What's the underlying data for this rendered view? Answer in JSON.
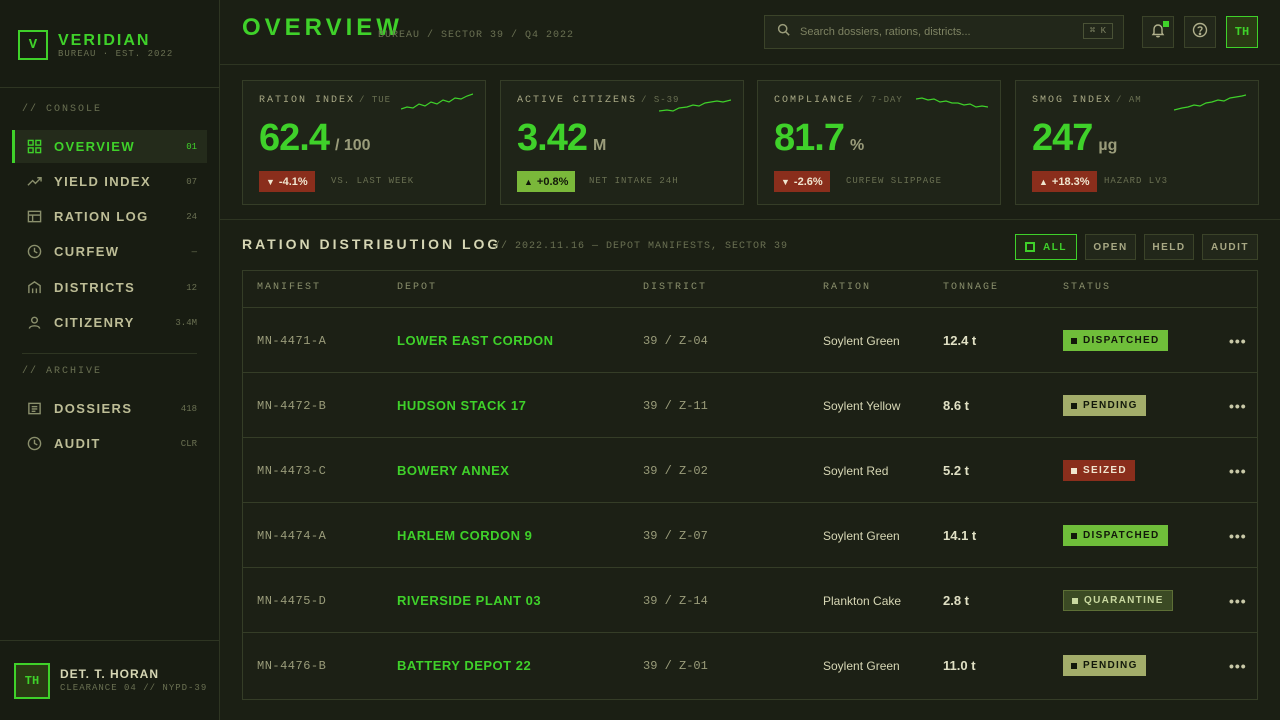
{
  "brand": {
    "mark": "V",
    "name": "VERIDIAN",
    "sub": "BUREAU · EST. 2022"
  },
  "sidebar": {
    "section_console": "// CONSOLE",
    "section_archive": "// ARCHIVE",
    "items": [
      {
        "label": "OVERVIEW",
        "count": "01",
        "icon": "grid-icon"
      },
      {
        "label": "YIELD INDEX",
        "count": "07",
        "icon": "trend-icon"
      },
      {
        "label": "RATION LOG",
        "count": "24",
        "icon": "table-icon"
      },
      {
        "label": "CURFEW",
        "count": "—",
        "icon": "clock-icon"
      },
      {
        "label": "DISTRICTS",
        "count": "12",
        "icon": "building-icon"
      },
      {
        "label": "CITIZENRY",
        "count": "3.4M",
        "icon": "person-icon"
      }
    ],
    "archive_items": [
      {
        "label": "DOSSIERS",
        "count": "418",
        "icon": "document-icon"
      },
      {
        "label": "AUDIT",
        "count": "CLR",
        "icon": "clock-icon"
      }
    ],
    "user": {
      "initials": "TH",
      "name": "DET. T. HORAN",
      "meta": "CLEARANCE 04 // NYPD-39"
    }
  },
  "header": {
    "title": "OVERVIEW",
    "breadcrumb": "BUREAU / SECTOR 39 / Q4 2022",
    "search_placeholder": "Search dossiers, rations, districts...",
    "search_shortcut": "⌘ K",
    "avatar_initials": "TH"
  },
  "cards": [
    {
      "label": "RATION INDEX",
      "period": "/ TUE",
      "value": "62.4",
      "unit": "/ 100",
      "delta": "-4.1%",
      "direction": "down",
      "note": "VS. LAST WEEK"
    },
    {
      "label": "ACTIVE CITIZENS",
      "period": "/ S-39",
      "value": "3.42",
      "unit": "M",
      "delta": "+0.8%",
      "direction": "up",
      "note": "NET INTAKE 24H"
    },
    {
      "label": "COMPLIANCE",
      "period": "/ 7-DAY",
      "value": "81.7",
      "unit": "%",
      "delta": "-2.6%",
      "direction": "down",
      "note": "CURFEW SLIPPAGE"
    },
    {
      "label": "SMOG INDEX",
      "period": "/ AM",
      "value": "247",
      "unit": "µg",
      "delta": "+18.3%",
      "direction": "up-bad",
      "note": "HAZARD LV3"
    }
  ],
  "table": {
    "title": "RATION DISTRIBUTION LOG",
    "subtitle": "// 2022.11.16 — DEPOT MANIFESTS, SECTOR 39",
    "filters": [
      "ALL",
      "OPEN",
      "HELD",
      "AUDIT"
    ],
    "columns": [
      "MANIFEST",
      "DEPOT",
      "DISTRICT",
      "RATION",
      "TONNAGE",
      "STATUS"
    ],
    "rows": [
      {
        "manifest": "MN-4471-A",
        "depot": "LOWER EAST CORDON",
        "district": "39 / Z-04",
        "ration": "Soylent Green",
        "tonnage": "12.4 t",
        "status": "DISPATCHED",
        "status_kind": "dispatched"
      },
      {
        "manifest": "MN-4472-B",
        "depot": "HUDSON STACK 17",
        "district": "39 / Z-11",
        "ration": "Soylent Yellow",
        "tonnage": "8.6 t",
        "status": "PENDING",
        "status_kind": "pending"
      },
      {
        "manifest": "MN-4473-C",
        "depot": "BOWERY ANNEX",
        "district": "39 / Z-02",
        "ration": "Soylent Red",
        "tonnage": "5.2 t",
        "status": "SEIZED",
        "status_kind": "seized"
      },
      {
        "manifest": "MN-4474-A",
        "depot": "HARLEM CORDON 9",
        "district": "39 / Z-07",
        "ration": "Soylent Green",
        "tonnage": "14.1 t",
        "status": "DISPATCHED",
        "status_kind": "dispatched"
      },
      {
        "manifest": "MN-4475-D",
        "depot": "RIVERSIDE PLANT 03",
        "district": "39 / Z-14",
        "ration": "Plankton Cake",
        "tonnage": "2.8 t",
        "status": "QUARANTINE",
        "status_kind": "quarantine"
      },
      {
        "manifest": "MN-4476-B",
        "depot": "BATTERY DEPOT 22",
        "district": "39 / Z-01",
        "ration": "Soylent Green",
        "tonnage": "11.0 t",
        "status": "PENDING",
        "status_kind": "pending"
      }
    ],
    "row_action": "•••"
  },
  "colors": {
    "accent": "#3fd12a",
    "danger": "#8a2e1c",
    "success": "#6fbe3a",
    "pending": "#a3ad6a"
  }
}
